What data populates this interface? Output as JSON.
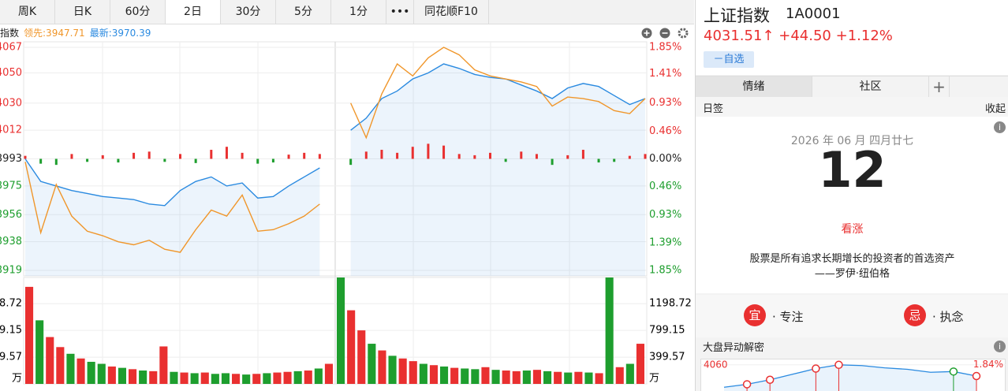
{
  "toolbar": {
    "tabs": [
      "周K",
      "日K",
      "60分",
      "2日",
      "30分",
      "5分",
      "1分",
      "•••",
      "同花顺F10"
    ],
    "selected": 3
  },
  "legend": {
    "label": "指数",
    "lead": "领先:3947.71",
    "latest": "最新:3970.39"
  },
  "chart_data": [
    {
      "type": "line",
      "ylim": [
        3919,
        4067
      ],
      "yticks": [
        4067,
        4050,
        4030,
        4012,
        3993,
        3975,
        3956,
        3938,
        3919
      ],
      "y2lim": [
        -1.85,
        1.85
      ],
      "y2ticks": [
        {
          "value": 1.85,
          "label": "1.85%"
        },
        {
          "value": 1.41,
          "label": "1.41%"
        },
        {
          "value": 0.93,
          "label": "0.93%"
        },
        {
          "value": 0.46,
          "label": "0.46%"
        },
        {
          "value": 0,
          "label": "0.00%"
        },
        {
          "value": -0.46,
          "label": "0.46%"
        },
        {
          "value": -0.93,
          "label": "0.93%"
        },
        {
          "value": -1.39,
          "label": "1.39%"
        },
        {
          "value": -1.85,
          "label": "1.85%"
        }
      ],
      "grid": true,
      "colors": {
        "up": "#e93030",
        "down": "#1e9e2e",
        "flat": "#222222"
      },
      "series": [
        {
          "color": "#2a8ae0",
          "area": true,
          "values": [
            3993,
            3978,
            3975,
            3972,
            3970,
            3968,
            3967,
            3966,
            3963,
            3962,
            3972,
            3978,
            3981,
            3975,
            3977,
            3967,
            3968,
            3975,
            3981,
            3987,
            null,
            4012,
            4020,
            4033,
            4038,
            4046,
            4050,
            4056,
            4053,
            4049,
            4047,
            4046,
            4042,
            4038,
            4033,
            4040,
            4043,
            4041,
            4035,
            4029,
            4033
          ]
        },
        {
          "color": "#f0962a",
          "values": [
            3991,
            3944,
            3976,
            3955,
            3945,
            3942,
            3938,
            3936,
            3939,
            3933,
            3931,
            3946,
            3959,
            3955,
            3969,
            3945,
            3946,
            3950,
            3955,
            3963,
            null,
            4030,
            4007,
            4036,
            4056,
            4048,
            4060,
            4067,
            4062,
            4052,
            4048,
            4046,
            4044,
            4041,
            4028,
            4034,
            4033,
            4031,
            4025,
            4023,
            4033
          ]
        },
        {
          "type": "bar",
          "axis": "y2",
          "values": [
            0.05,
            -0.08,
            -0.1,
            0.08,
            -0.05,
            0.06,
            -0.06,
            0.1,
            0.12,
            -0.05,
            0.08,
            -0.07,
            0.15,
            0.2,
            0.1,
            -0.08,
            -0.06,
            0.07,
            0.1,
            0.08,
            null,
            -0.1,
            0.12,
            0.15,
            0.1,
            0.2,
            0.25,
            0.22,
            0.08,
            0.06,
            0.1,
            -0.05,
            0.12,
            0.08,
            -0.1,
            0.06,
            0.15,
            -0.06,
            -0.05,
            0.05,
            0.08
          ]
        }
      ]
    },
    {
      "type": "bar",
      "unit": "万",
      "ylim": [
        0,
        1590
      ],
      "yticks": [
        1198.72,
        799.15,
        399.57
      ],
      "values": [
        1450,
        950,
        700,
        550,
        450,
        380,
        330,
        300,
        260,
        240,
        220,
        200,
        190,
        560,
        180,
        170,
        160,
        170,
        150,
        160,
        150,
        140,
        150,
        160,
        170,
        180,
        190,
        200,
        230,
        300,
        1590,
        1100,
        800,
        600,
        500,
        420,
        380,
        340,
        300,
        280,
        260,
        240,
        230,
        220,
        250,
        210,
        200,
        190,
        200,
        210,
        190,
        180,
        170,
        180,
        170,
        160,
        1590,
        250,
        300,
        600
      ],
      "bar_colors": [
        "#e93030",
        "#1e9e2e",
        "#e93030",
        "#e93030",
        "#1e9e2e",
        "#e93030",
        "#1e9e2e",
        "#1e9e2e",
        "#e93030",
        "#1e9e2e",
        "#e93030",
        "#1e9e2e",
        "#e93030",
        "#e93030",
        "#1e9e2e",
        "#e93030",
        "#1e9e2e",
        "#e93030",
        "#1e9e2e",
        "#1e9e2e",
        "#e93030",
        "#1e9e2e",
        "#e93030",
        "#1e9e2e",
        "#e93030",
        "#e93030",
        "#1e9e2e",
        "#e93030",
        "#1e9e2e",
        "#e93030",
        "#1e9e2e",
        "#e93030",
        "#e93030",
        "#1e9e2e",
        "#e93030",
        "#1e9e2e",
        "#e93030",
        "#e93030",
        "#1e9e2e",
        "#e93030",
        "#1e9e2e",
        "#e93030",
        "#1e9e2e",
        "#1e9e2e",
        "#e93030",
        "#1e9e2e",
        "#e93030",
        "#e93030",
        "#1e9e2e",
        "#e93030",
        "#1e9e2e",
        "#e93030",
        "#1e9e2e",
        "#e93030",
        "#1e9e2e",
        "#e93030",
        "#1e9e2e",
        "#e93030",
        "#1e9e2e",
        "#e93030"
      ]
    },
    {
      "type": "line",
      "color": "#2a8ae0",
      "ylim": [
        3990,
        4068
      ],
      "yticks": [
        4060
      ],
      "y2lim": [
        0.08,
        2.03
      ],
      "y2ticks": [
        {
          "value": 1.84,
          "label": "1.84%"
        }
      ],
      "values": [
        4000,
        4008,
        4020,
        4035,
        4050,
        4060,
        4058,
        4052,
        4048,
        4040,
        4042,
        4030
      ],
      "marker_colors": [
        null,
        "#e93030",
        "#e93030",
        null,
        "#e93030",
        "#e93030",
        null,
        null,
        null,
        null,
        "#1e9e2e",
        "#e93030"
      ]
    }
  ],
  "quote": {
    "name": "上证指数",
    "code": "1A0001",
    "price": "4031.51↑",
    "change": "+44.50",
    "change_pct": "+1.12%",
    "watch": "－自选"
  },
  "tabs": [
    "情绪",
    "社区",
    "+"
  ],
  "daily_sign": {
    "title": "日签",
    "collapse": "收起",
    "date": "2026 年 06 月 四月廿七",
    "day": "12",
    "mood": "看涨",
    "quote": "股票是所有追求长期增长的投资者的首选资产",
    "author": "——罗伊·纽伯格",
    "good": {
      "badge": "宜",
      "text": "· 专注"
    },
    "bad": {
      "badge": "忌",
      "text": "· 执念"
    }
  },
  "anomaly_title": "大盘异动解密"
}
